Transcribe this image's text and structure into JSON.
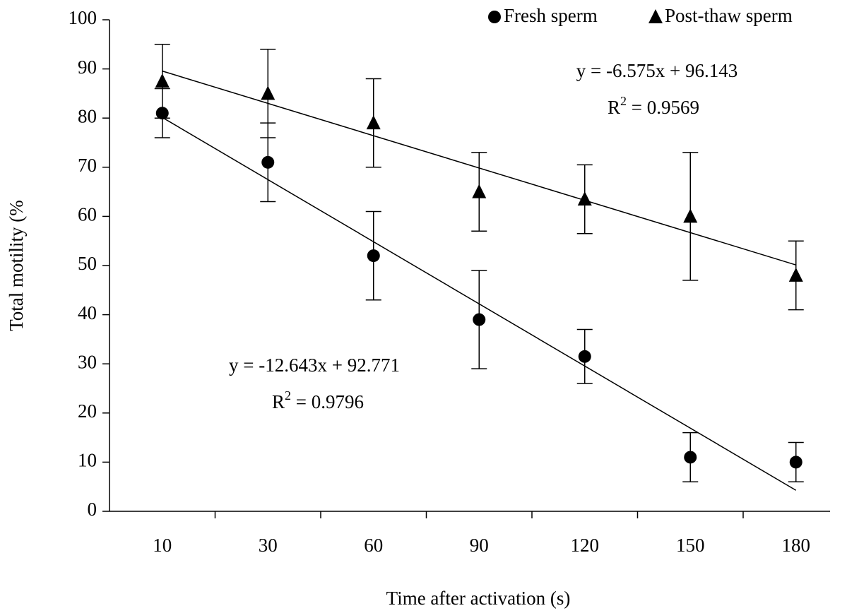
{
  "chart_data": {
    "type": "line_error",
    "x_label": "Time after activation (s)",
    "y_label": "Total motility (%",
    "categories": [
      "10",
      "30",
      "60",
      "90",
      "120",
      "150",
      "180"
    ],
    "ylim": [
      0,
      100
    ],
    "yticks": [
      0,
      10,
      20,
      30,
      40,
      50,
      60,
      70,
      80,
      90,
      100
    ],
    "legend": "top-right",
    "series": [
      {
        "name": "Fresh sperm",
        "color": "#000000",
        "marker": "circle",
        "values": [
          81,
          71,
          52,
          39,
          31.5,
          11,
          10
        ],
        "errors": [
          5,
          8,
          9,
          10,
          5.5,
          5,
          4
        ],
        "trendline": {
          "slope": -12.643,
          "intercept": 92.771,
          "label": "y = -12.643x + 92.771",
          "r2_label": {
            "base": "R",
            "sup": "2",
            "rest": " = 0.9796"
          }
        }
      },
      {
        "name": "Post-thaw sperm",
        "color": "#000000",
        "marker": "triangle",
        "values": [
          87.5,
          85,
          79,
          65,
          63.5,
          60,
          48
        ],
        "errors": [
          7.5,
          9,
          9,
          8,
          7,
          13,
          7
        ],
        "trendline": {
          "slope": -6.575,
          "intercept": 96.143,
          "label": "y = -6.575x + 96.143",
          "r2_label": {
            "base": "R",
            "sup": "2",
            "rest": " = 0.9569"
          }
        }
      }
    ]
  }
}
